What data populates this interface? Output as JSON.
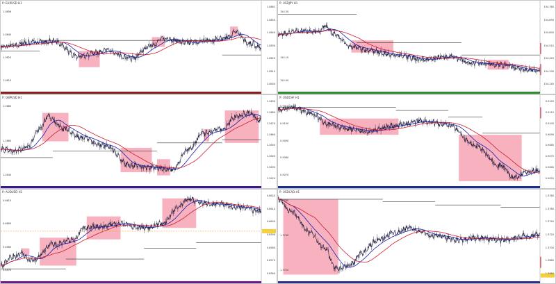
{
  "charts": [
    {
      "id": "top-left",
      "title": "P: EURUSD H1",
      "strip_color": "#8b1a1a",
      "right_labels": [
        "1.0861",
        "1.0850",
        "1.0840",
        "1.0830",
        "1.0820",
        "1.0810",
        "1.0800"
      ],
      "left_labels": [
        "1.0856",
        "1.0840",
        "1.0820",
        "1.0810"
      ]
    },
    {
      "id": "top-right",
      "title": "P: USDJPY H1",
      "strip_color": "#2e8b2e",
      "right_labels": [
        "154.780",
        "154.690",
        "154.600",
        "154.510",
        "154.420",
        "154.330",
        "154.240"
      ],
      "left_labels": [
        "154.30",
        "154.20",
        "154.10",
        "154.00"
      ]
    },
    {
      "id": "middle-left",
      "title": "P: GBPUSD H1",
      "strip_color": "#3b1a8b",
      "right_labels": [
        "1.2690",
        "1.2680",
        "1.2670",
        "1.2660",
        "1.2650",
        "1.2640",
        "1.2630",
        "1.2620"
      ],
      "left_labels": [
        "1.2680",
        "1.2660",
        "1.2640"
      ]
    },
    {
      "id": "middle-right",
      "title": "P: USDCHF H1",
      "strip_color": "#1a2e8b",
      "right_labels": [
        "0.9120",
        "0.9110",
        "0.9100",
        "0.9090",
        "0.9080",
        "0.9070",
        "0.9060",
        "0.9050"
      ],
      "left_labels": [
        "0.9110",
        "0.9100",
        "0.9090",
        "0.9080",
        "0.9070"
      ]
    },
    {
      "id": "bottom-left",
      "title": "P: AUDUSD H1",
      "strip_color": "#6b1a8b",
      "right_labels": [
        "0.6620",
        "0.6610",
        "0.6600",
        "0.6590",
        "0.6580",
        "0.6570",
        "0.6560"
      ],
      "left_labels": [
        "0.6615",
        "0.6600",
        "0.6585",
        "0.6570"
      ]
    },
    {
      "id": "bottom-right",
      "title": "P: USDCAD H1",
      "strip_color": "#2e2e8b",
      "right_labels": [
        "1.3780",
        "1.3760",
        "1.3740",
        "1.3720",
        "1.3700",
        "1.3680",
        "1.3660"
      ],
      "left_labels": [
        "1.3760",
        "1.3740",
        "1.3720"
      ]
    }
  ],
  "colors": {
    "price": "#1a1a3a",
    "ma_fast": "#cc1a2a",
    "ma_slow": "#1a1aaa",
    "level": "#333333",
    "zone": "#f7a3b3",
    "axis_marker_red": "#cc1a2a",
    "axis_marker_yellow": "#f4d03f",
    "dashed_level": "#f0b040"
  }
}
